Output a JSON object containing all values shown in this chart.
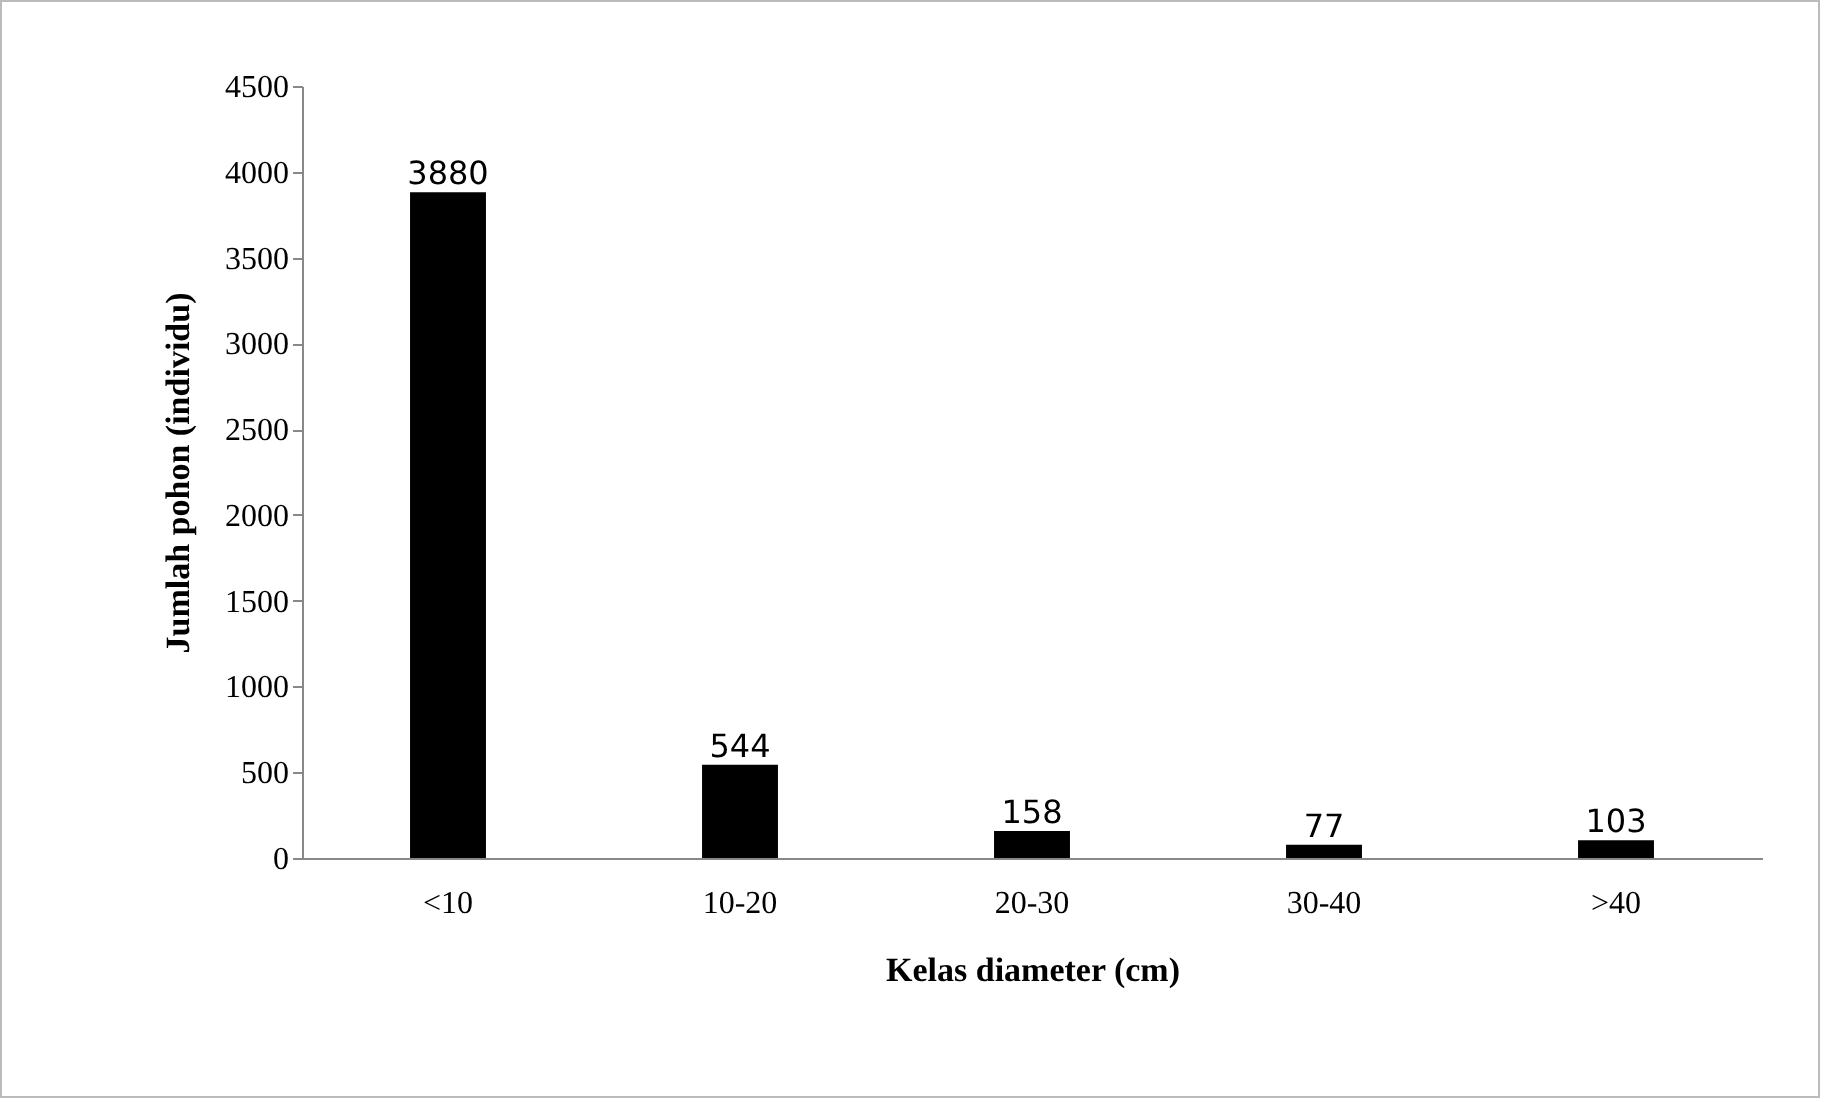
{
  "chart_data": {
    "type": "bar",
    "xlabel": "Kelas diameter (cm)",
    "ylabel": "Jumlah pohon (individu)",
    "categories": [
      "<10",
      "10-20",
      "20-30",
      "30-40",
      ">40"
    ],
    "values": [
      3880,
      544,
      158,
      77,
      103
    ],
    "color": "#000000",
    "ylim": [
      0,
      4500
    ],
    "yticks": [
      0,
      500,
      1000,
      1500,
      2000,
      2500,
      3000,
      3500,
      4000,
      4500
    ],
    "data_labels": true
  }
}
